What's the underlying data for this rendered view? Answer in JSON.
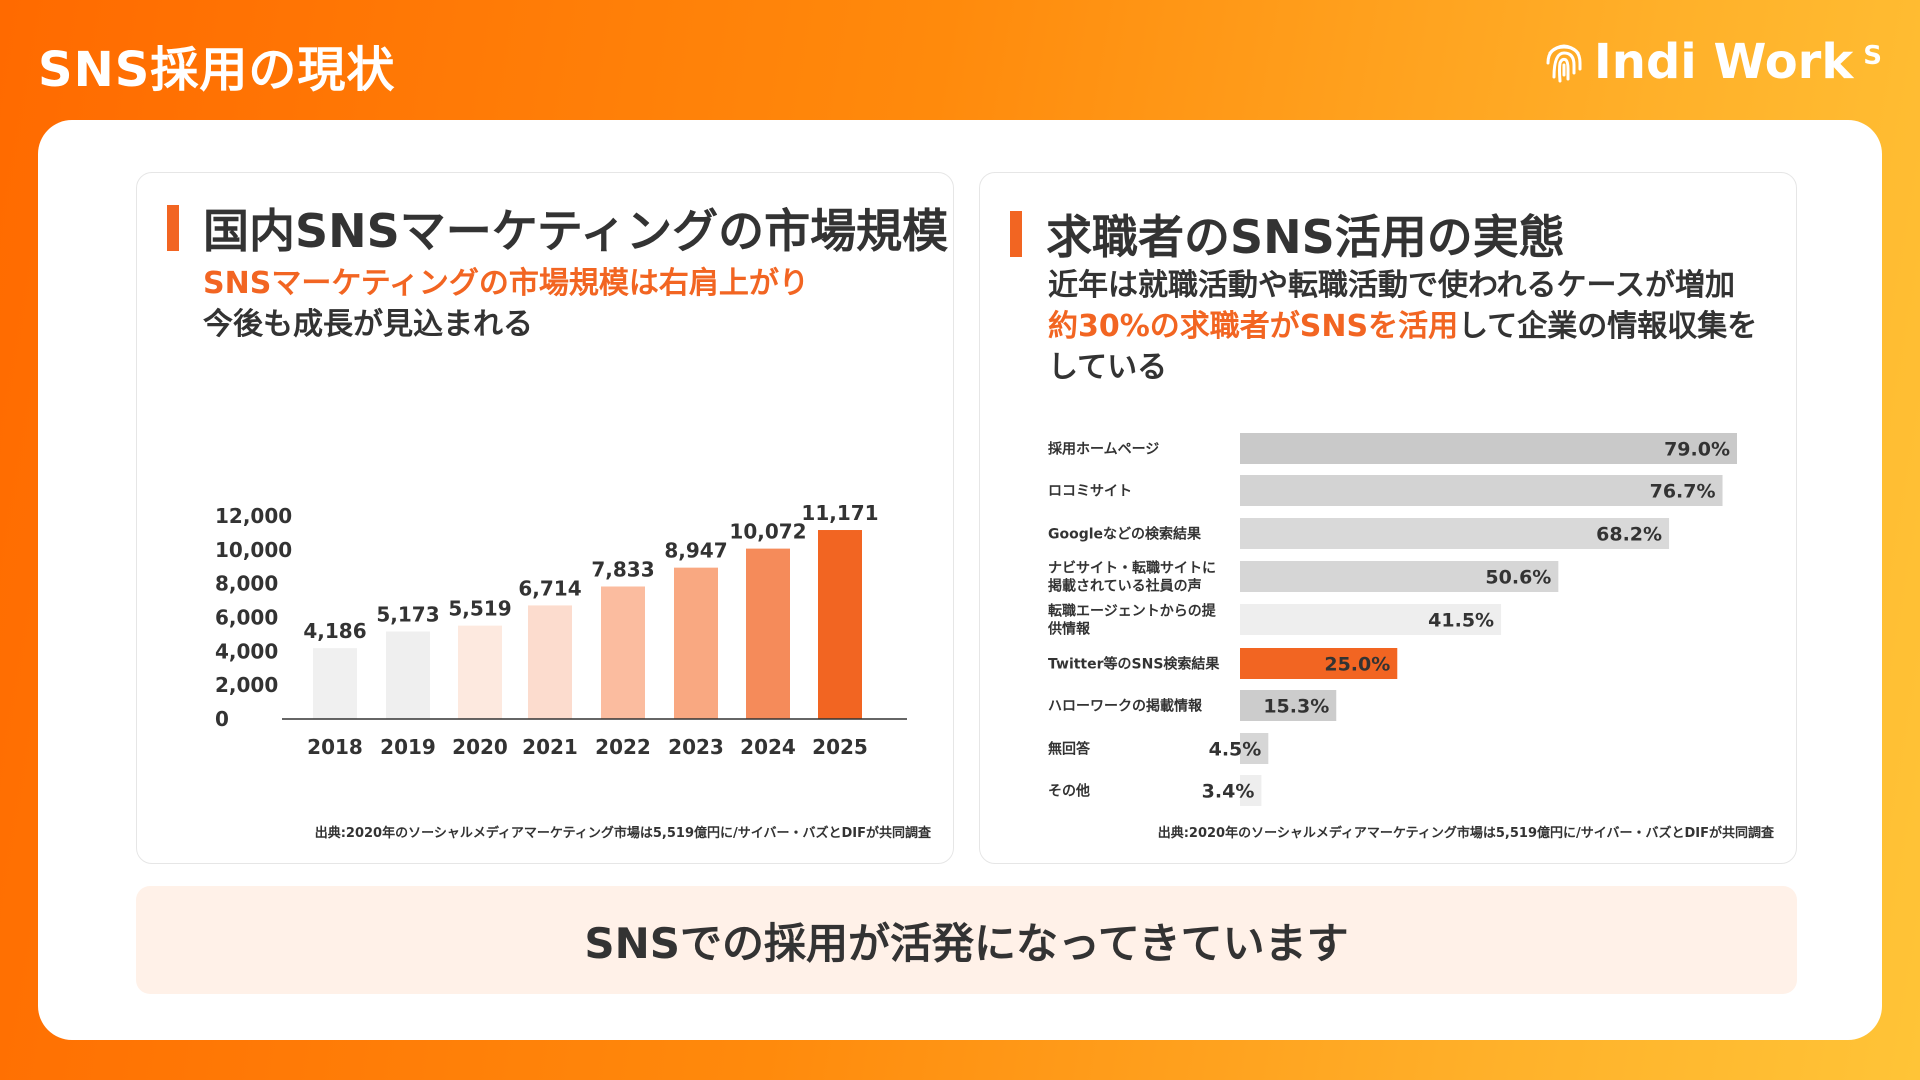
{
  "page": {
    "title": "SNS採用の現状",
    "logo_text": "Indi Work",
    "logo_suffix": "S"
  },
  "left_panel": {
    "heading": "国内SNSマーケティングの市場規模",
    "subtitle_accent": "SNSマーケティングの市場規模は右肩上がり",
    "subtitle_rest": "今後も成長が見込まれる",
    "source": "出典:2020年のソーシャルメディアマーケティング市場は5,519億円に/サイバー・バズとDIFが共同調査"
  },
  "right_panel": {
    "heading": "求職者のSNS活用の実態",
    "subtitle_line1": "近年は就職活動や転職活動で使われるケースが増加",
    "subtitle_accent": "約30%の求職者がSNSを活用",
    "subtitle_rest": "して企業の情報収集を",
    "subtitle_line3": "している",
    "source": "出典:2020年のソーシャルメディアマーケティング市場は5,519億円に/サイバー・バズとDIFが共同調査"
  },
  "conclusion": "SNSでの採用が活発になってきています",
  "colors": {
    "accent": "#f26522",
    "bar_gradient": [
      "#f0f0f0",
      "#efefef",
      "#fde9df",
      "#fcdcce",
      "#fbbc9f",
      "#f9a881",
      "#f58b5a",
      "#f26522"
    ],
    "hbar_colors": [
      "#c9c9c9",
      "#d3d3d3",
      "#d9d9d9",
      "#d6d6d6",
      "#eeeeee",
      "#f26522",
      "#cccccc",
      "#d6d6d6",
      "#eeeeee"
    ]
  },
  "chart_data": [
    {
      "type": "bar",
      "categories": [
        "2018",
        "2019",
        "2020",
        "2021",
        "2022",
        "2023",
        "2024",
        "2025"
      ],
      "values": [
        4186,
        5173,
        5519,
        6714,
        7833,
        8947,
        10072,
        11171
      ],
      "value_labels": [
        "4,186",
        "5,173",
        "5,519",
        "6,714",
        "7,833",
        "8,947",
        "10,072",
        "11,171"
      ],
      "y_ticks": [
        "0",
        "2,000",
        "4,000",
        "6,000",
        "8,000",
        "10,000",
        "12,000"
      ],
      "ylim": [
        0,
        12000
      ],
      "grid": false,
      "title": "",
      "xlabel": "",
      "ylabel": ""
    },
    {
      "type": "bar",
      "orientation": "horizontal",
      "categories": [
        "採用ホームページ",
        "ロコミサイト",
        "Googleなどの検索結果",
        "ナビサイト・転職サイトに|掲載されている社員の声",
        "転職エージェントからの提|供情報",
        "Twitter等のSNS検索結果",
        "ハローワークの掲載情報",
        "無回答",
        "その他"
      ],
      "values": [
        79.0,
        76.7,
        68.2,
        50.6,
        41.5,
        25.0,
        15.3,
        4.5,
        3.4
      ],
      "value_labels": [
        "79.0%",
        "76.7%",
        "68.2%",
        "50.6%",
        "41.5%",
        "25.0%",
        "15.3%",
        "4.5%",
        "3.4%"
      ],
      "xlim": [
        0,
        100
      ],
      "grid": false,
      "title": "",
      "xlabel": "",
      "ylabel": ""
    }
  ]
}
